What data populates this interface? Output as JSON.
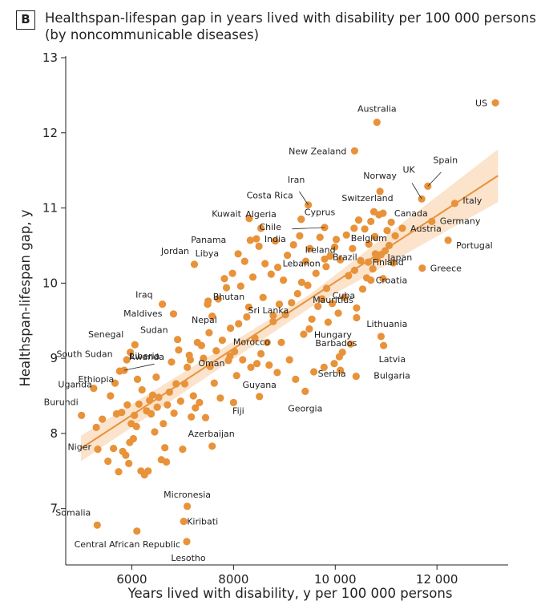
{
  "panel": "B",
  "chart_data": {
    "type": "scatter",
    "title_line1": "Healthspan-lifespan gap in years lived with disability per 100 000 persons",
    "title_line2": "(by noncommunicable diseases)",
    "xlabel": "Years lived with disability, y per 100 000 persons",
    "ylabel": "Healthspan-lifespan gap, y",
    "xlim": [
      4700,
      13400
    ],
    "ylim": [
      6.25,
      13
    ],
    "xticks": [
      6000,
      8000,
      10000,
      12000
    ],
    "xtick_labels": [
      "6000",
      "8000",
      "10 000",
      "12 000"
    ],
    "yticks": [
      7,
      8,
      9,
      10,
      11,
      12,
      13
    ],
    "ytick_labels": [
      "7",
      "8",
      "9",
      "10",
      "11",
      "12",
      "13"
    ],
    "point_color": "#e8923a",
    "line_color": "#e8923a",
    "band_color": "#fbe3cc",
    "regression": {
      "x": [
        5000,
        13200
      ],
      "y": [
        7.8,
        11.43
      ]
    },
    "band": {
      "x": [
        5000,
        9500,
        13200
      ],
      "upper": [
        7.97,
        9.85,
        11.78
      ],
      "lower": [
        7.63,
        9.67,
        11.08
      ]
    },
    "labeled_points": [
      {
        "name": "US",
        "x": 13150,
        "y": 12.4
      },
      {
        "name": "Australia",
        "x": 10820,
        "y": 12.14
      },
      {
        "name": "New Zealand",
        "x": 10380,
        "y": 11.76
      },
      {
        "name": "UK",
        "x": 11700,
        "y": 11.12
      },
      {
        "name": "Spain",
        "x": 11820,
        "y": 11.29
      },
      {
        "name": "Norway",
        "x": 10880,
        "y": 11.22
      },
      {
        "name": "Iran",
        "x": 9470,
        "y": 11.04
      },
      {
        "name": "Italy",
        "x": 12350,
        "y": 11.06
      },
      {
        "name": "Costa Rica",
        "x": 9330,
        "y": 10.85
      },
      {
        "name": "Cyprus",
        "x": 9330,
        "y": 10.85
      },
      {
        "name": "Switzerland",
        "x": 10760,
        "y": 10.95
      },
      {
        "name": "Canada",
        "x": 10940,
        "y": 10.93
      },
      {
        "name": "Kuwait",
        "x": 8310,
        "y": 10.86
      },
      {
        "name": "Algeria",
        "x": 8540,
        "y": 10.73
      },
      {
        "name": "Germany",
        "x": 11900,
        "y": 10.82
      },
      {
        "name": "Chile",
        "x": 9790,
        "y": 10.74
      },
      {
        "name": "Panama",
        "x": 8330,
        "y": 10.57
      },
      {
        "name": "Belgium",
        "x": 10370,
        "y": 10.73
      },
      {
        "name": "Austria",
        "x": 11320,
        "y": 10.73
      },
      {
        "name": "India",
        "x": 8450,
        "y": 10.59
      },
      {
        "name": "Ireland",
        "x": 9990,
        "y": 10.48
      },
      {
        "name": "Portugal",
        "x": 12220,
        "y": 10.57
      },
      {
        "name": "Libya",
        "x": 8090,
        "y": 10.39
      },
      {
        "name": "Finland",
        "x": 10790,
        "y": 10.39
      },
      {
        "name": "Jordan",
        "x": 7230,
        "y": 10.25
      },
      {
        "name": "Lebanon",
        "x": 8870,
        "y": 10.21
      },
      {
        "name": "Brazil",
        "x": 9790,
        "y": 10.32
      },
      {
        "name": "Japan",
        "x": 10650,
        "y": 10.28
      },
      {
        "name": "Greece",
        "x": 11710,
        "y": 10.2
      },
      {
        "name": "Croatia",
        "x": 10700,
        "y": 10.04
      },
      {
        "name": "Iraq",
        "x": 6600,
        "y": 9.72
      },
      {
        "name": "Bhutan",
        "x": 7500,
        "y": 9.76
      },
      {
        "name": "Cuba",
        "x": 10420,
        "y": 9.67
      },
      {
        "name": "Mauritius",
        "x": 9830,
        "y": 9.93
      },
      {
        "name": "Maldives",
        "x": 6820,
        "y": 9.59
      },
      {
        "name": "Sri Lanka",
        "x": 8780,
        "y": 9.49
      },
      {
        "name": "Sudan",
        "x": 6900,
        "y": 9.25
      },
      {
        "name": "Nepal",
        "x": 7520,
        "y": 9.34
      },
      {
        "name": "Hungary",
        "x": 9490,
        "y": 9.39
      },
      {
        "name": "Lithuania",
        "x": 10900,
        "y": 9.29
      },
      {
        "name": "Senegal",
        "x": 6060,
        "y": 9.18
      },
      {
        "name": "Morocco",
        "x": 7930,
        "y": 9.03
      },
      {
        "name": "Barbados",
        "x": 10080,
        "y": 9.02
      },
      {
        "name": "Latvia",
        "x": 10950,
        "y": 9.17
      },
      {
        "name": "South Sudan",
        "x": 5970,
        "y": 9.08
      },
      {
        "name": "Liberia",
        "x": 5900,
        "y": 8.98
      },
      {
        "name": "Oman",
        "x": 7150,
        "y": 8.98
      },
      {
        "name": "Serbia",
        "x": 10100,
        "y": 8.84
      },
      {
        "name": "Rwanda",
        "x": 5850,
        "y": 8.84
      },
      {
        "name": "Bulgaria",
        "x": 10410,
        "y": 8.76
      },
      {
        "name": "Ethiopia",
        "x": 5670,
        "y": 8.67
      },
      {
        "name": "Uganda",
        "x": 5250,
        "y": 8.6
      },
      {
        "name": "Guyana",
        "x": 8510,
        "y": 8.49
      },
      {
        "name": "Georgia",
        "x": 9410,
        "y": 8.56
      },
      {
        "name": "Burundi",
        "x": 5010,
        "y": 8.24
      },
      {
        "name": "Fiji",
        "x": 8000,
        "y": 8.41
      },
      {
        "name": "Niger",
        "x": 5330,
        "y": 7.79
      },
      {
        "name": "Azerbaijan",
        "x": 7580,
        "y": 7.83
      },
      {
        "name": "Micronesia",
        "x": 7090,
        "y": 7.03
      },
      {
        "name": "Somalia",
        "x": 5320,
        "y": 6.78
      },
      {
        "name": "Kiribati",
        "x": 7020,
        "y": 6.83
      },
      {
        "name": "Central African Republic",
        "x": 6100,
        "y": 6.7
      },
      {
        "name": "Lesotho",
        "x": 7080,
        "y": 6.56
      }
    ],
    "other_points": [
      [
        5300,
        8.08
      ],
      [
        5420,
        8.19
      ],
      [
        5530,
        7.63
      ],
      [
        5580,
        8.5
      ],
      [
        5640,
        7.8
      ],
      [
        5700,
        8.26
      ],
      [
        5740,
        7.49
      ],
      [
        5760,
        8.83
      ],
      [
        5800,
        8.28
      ],
      [
        5820,
        7.76
      ],
      [
        5880,
        7.71
      ],
      [
        5910,
        8.38
      ],
      [
        5940,
        7.6
      ],
      [
        5960,
        7.88
      ],
      [
        5990,
        8.13
      ],
      [
        6030,
        7.93
      ],
      [
        6050,
        8.24
      ],
      [
        6090,
        8.09
      ],
      [
        6110,
        8.72
      ],
      [
        6140,
        8.39
      ],
      [
        6180,
        7.5
      ],
      [
        6200,
        8.58
      ],
      [
        6250,
        7.45
      ],
      [
        6290,
        8.3
      ],
      [
        6320,
        7.5
      ],
      [
        6350,
        8.44
      ],
      [
        6380,
        8.26
      ],
      [
        6410,
        8.51
      ],
      [
        6450,
        8.02
      ],
      [
        6480,
        8.75
      ],
      [
        6500,
        8.35
      ],
      [
        6530,
        8.48
      ],
      [
        6580,
        7.65
      ],
      [
        6620,
        8.13
      ],
      [
        6650,
        7.81
      ],
      [
        6680,
        7.62
      ],
      [
        6700,
        8.38
      ],
      [
        6740,
        8.55
      ],
      [
        6780,
        8.95
      ],
      [
        6830,
        8.27
      ],
      [
        6870,
        8.66
      ],
      [
        6920,
        9.11
      ],
      [
        6960,
        8.43
      ],
      [
        7000,
        7.79
      ],
      [
        7040,
        8.66
      ],
      [
        7090,
        8.88
      ],
      [
        7130,
        9.04
      ],
      [
        7170,
        8.22
      ],
      [
        7210,
        8.5
      ],
      [
        7250,
        8.34
      ],
      [
        7290,
        9.21
      ],
      [
        7330,
        8.41
      ],
      [
        7370,
        9.17
      ],
      [
        7410,
        9.0
      ],
      [
        7450,
        8.21
      ],
      [
        7490,
        9.72
      ],
      [
        7540,
        8.89
      ],
      [
        7580,
        9.56
      ],
      [
        7620,
        8.67
      ],
      [
        7660,
        9.1
      ],
      [
        7700,
        9.79
      ],
      [
        7740,
        8.47
      ],
      [
        7780,
        9.24
      ],
      [
        7820,
        10.06
      ],
      [
        7860,
        9.94
      ],
      [
        7900,
        8.97
      ],
      [
        7940,
        9.4
      ],
      [
        7980,
        10.13
      ],
      [
        8020,
        9.09
      ],
      [
        8060,
        8.77
      ],
      [
        8100,
        9.46
      ],
      [
        8140,
        9.96
      ],
      [
        8180,
        8.98
      ],
      [
        8220,
        10.29
      ],
      [
        8260,
        9.55
      ],
      [
        8300,
        9.68
      ],
      [
        8340,
        8.88
      ],
      [
        8380,
        10.08
      ],
      [
        8420,
        9.27
      ],
      [
        8460,
        8.93
      ],
      [
        8500,
        10.49
      ],
      [
        8540,
        9.06
      ],
      [
        8580,
        9.81
      ],
      [
        8620,
        10.26
      ],
      [
        8660,
        9.21
      ],
      [
        8700,
        8.91
      ],
      [
        8740,
        10.12
      ],
      [
        8780,
        9.57
      ],
      [
        8820,
        10.56
      ],
      [
        8860,
        8.81
      ],
      [
        8900,
        9.72
      ],
      [
        8940,
        9.21
      ],
      [
        8980,
        10.04
      ],
      [
        9020,
        9.58
      ],
      [
        9060,
        10.37
      ],
      [
        9100,
        8.98
      ],
      [
        9140,
        9.74
      ],
      [
        9180,
        10.51
      ],
      [
        9220,
        8.72
      ],
      [
        9260,
        9.86
      ],
      [
        9300,
        10.63
      ],
      [
        9340,
        10.01
      ],
      [
        9380,
        9.32
      ],
      [
        9420,
        10.29
      ],
      [
        9460,
        9.97
      ],
      [
        9500,
        10.46
      ],
      [
        9540,
        9.52
      ],
      [
        9580,
        8.82
      ],
      [
        9620,
        10.13
      ],
      [
        9660,
        9.69
      ],
      [
        9700,
        10.61
      ],
      [
        9740,
        9.79
      ],
      [
        9780,
        8.88
      ],
      [
        9820,
        10.22
      ],
      [
        9860,
        9.48
      ],
      [
        9900,
        10.36
      ],
      [
        9940,
        9.73
      ],
      [
        9980,
        8.93
      ],
      [
        10020,
        10.58
      ],
      [
        10060,
        9.6
      ],
      [
        10100,
        10.31
      ],
      [
        10140,
        9.08
      ],
      [
        10180,
        9.81
      ],
      [
        10220,
        10.64
      ],
      [
        10260,
        10.1
      ],
      [
        10300,
        9.19
      ],
      [
        10340,
        10.46
      ],
      [
        10380,
        10.17
      ],
      [
        10420,
        9.54
      ],
      [
        10460,
        10.84
      ],
      [
        10500,
        10.3
      ],
      [
        10540,
        9.92
      ],
      [
        10580,
        10.72
      ],
      [
        10620,
        10.07
      ],
      [
        10660,
        10.52
      ],
      [
        10700,
        10.82
      ],
      [
        10740,
        10.19
      ],
      [
        10780,
        10.62
      ],
      [
        10820,
        10.32
      ],
      [
        10860,
        10.91
      ],
      [
        10900,
        10.38
      ],
      [
        10940,
        10.06
      ],
      [
        10980,
        10.43
      ],
      [
        11020,
        10.7
      ],
      [
        11060,
        10.5
      ],
      [
        11100,
        10.81
      ],
      [
        11140,
        10.27
      ],
      [
        11180,
        10.63
      ]
    ]
  }
}
